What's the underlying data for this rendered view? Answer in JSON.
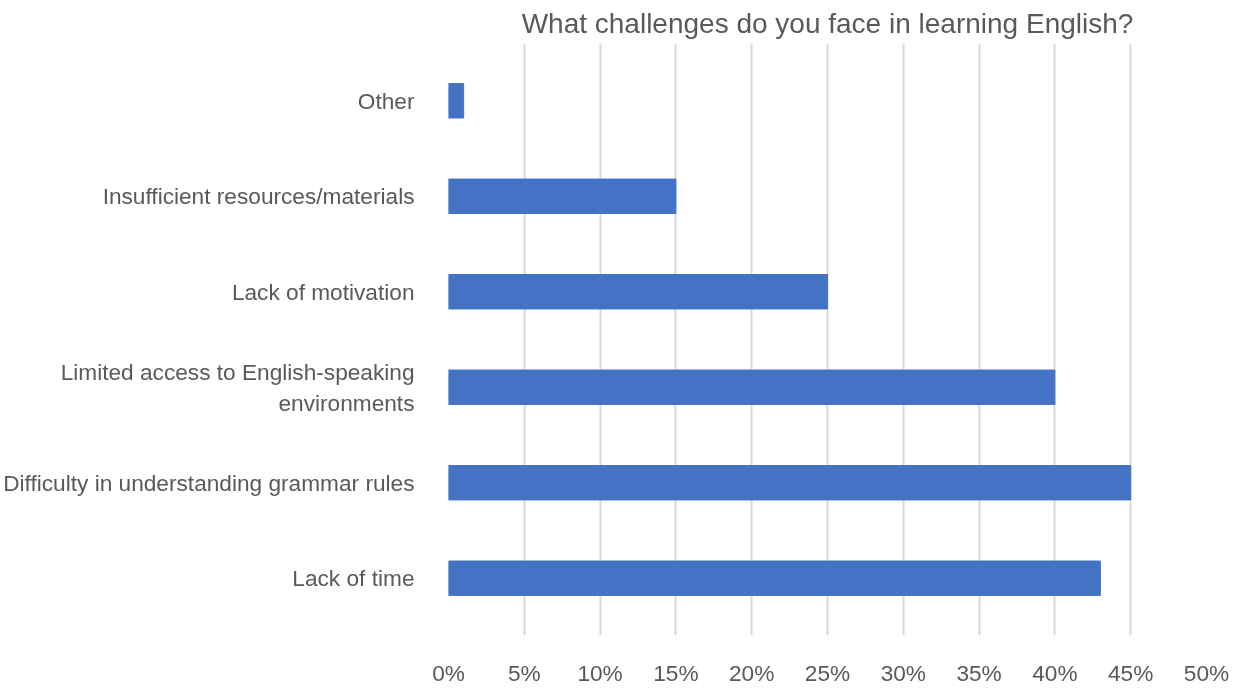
{
  "chart_data": {
    "type": "bar",
    "orientation": "horizontal",
    "title": "What challenges do you face in learning English?",
    "categories": [
      "Other",
      "Insufficient resources/materials",
      "Lack of motivation",
      "Limited access to English-speaking environments",
      "Difficulty in understanding grammar rules",
      "Lack of time"
    ],
    "values": [
      1,
      15,
      25,
      40,
      45,
      43
    ],
    "color": "#4472c4",
    "xlim": [
      0,
      50
    ],
    "xticks": [
      {
        "value": 0,
        "label": "0%"
      },
      {
        "value": 5,
        "label": "5%"
      },
      {
        "value": 10,
        "label": "10%"
      },
      {
        "value": 15,
        "label": "15%"
      },
      {
        "value": 20,
        "label": "20%"
      },
      {
        "value": 25,
        "label": "25%"
      },
      {
        "value": 30,
        "label": "30%"
      },
      {
        "value": 35,
        "label": "35%"
      },
      {
        "value": 40,
        "label": "40%"
      },
      {
        "value": 45,
        "label": "45%"
      },
      {
        "value": 50,
        "label": "50%"
      }
    ],
    "grid": "x"
  }
}
